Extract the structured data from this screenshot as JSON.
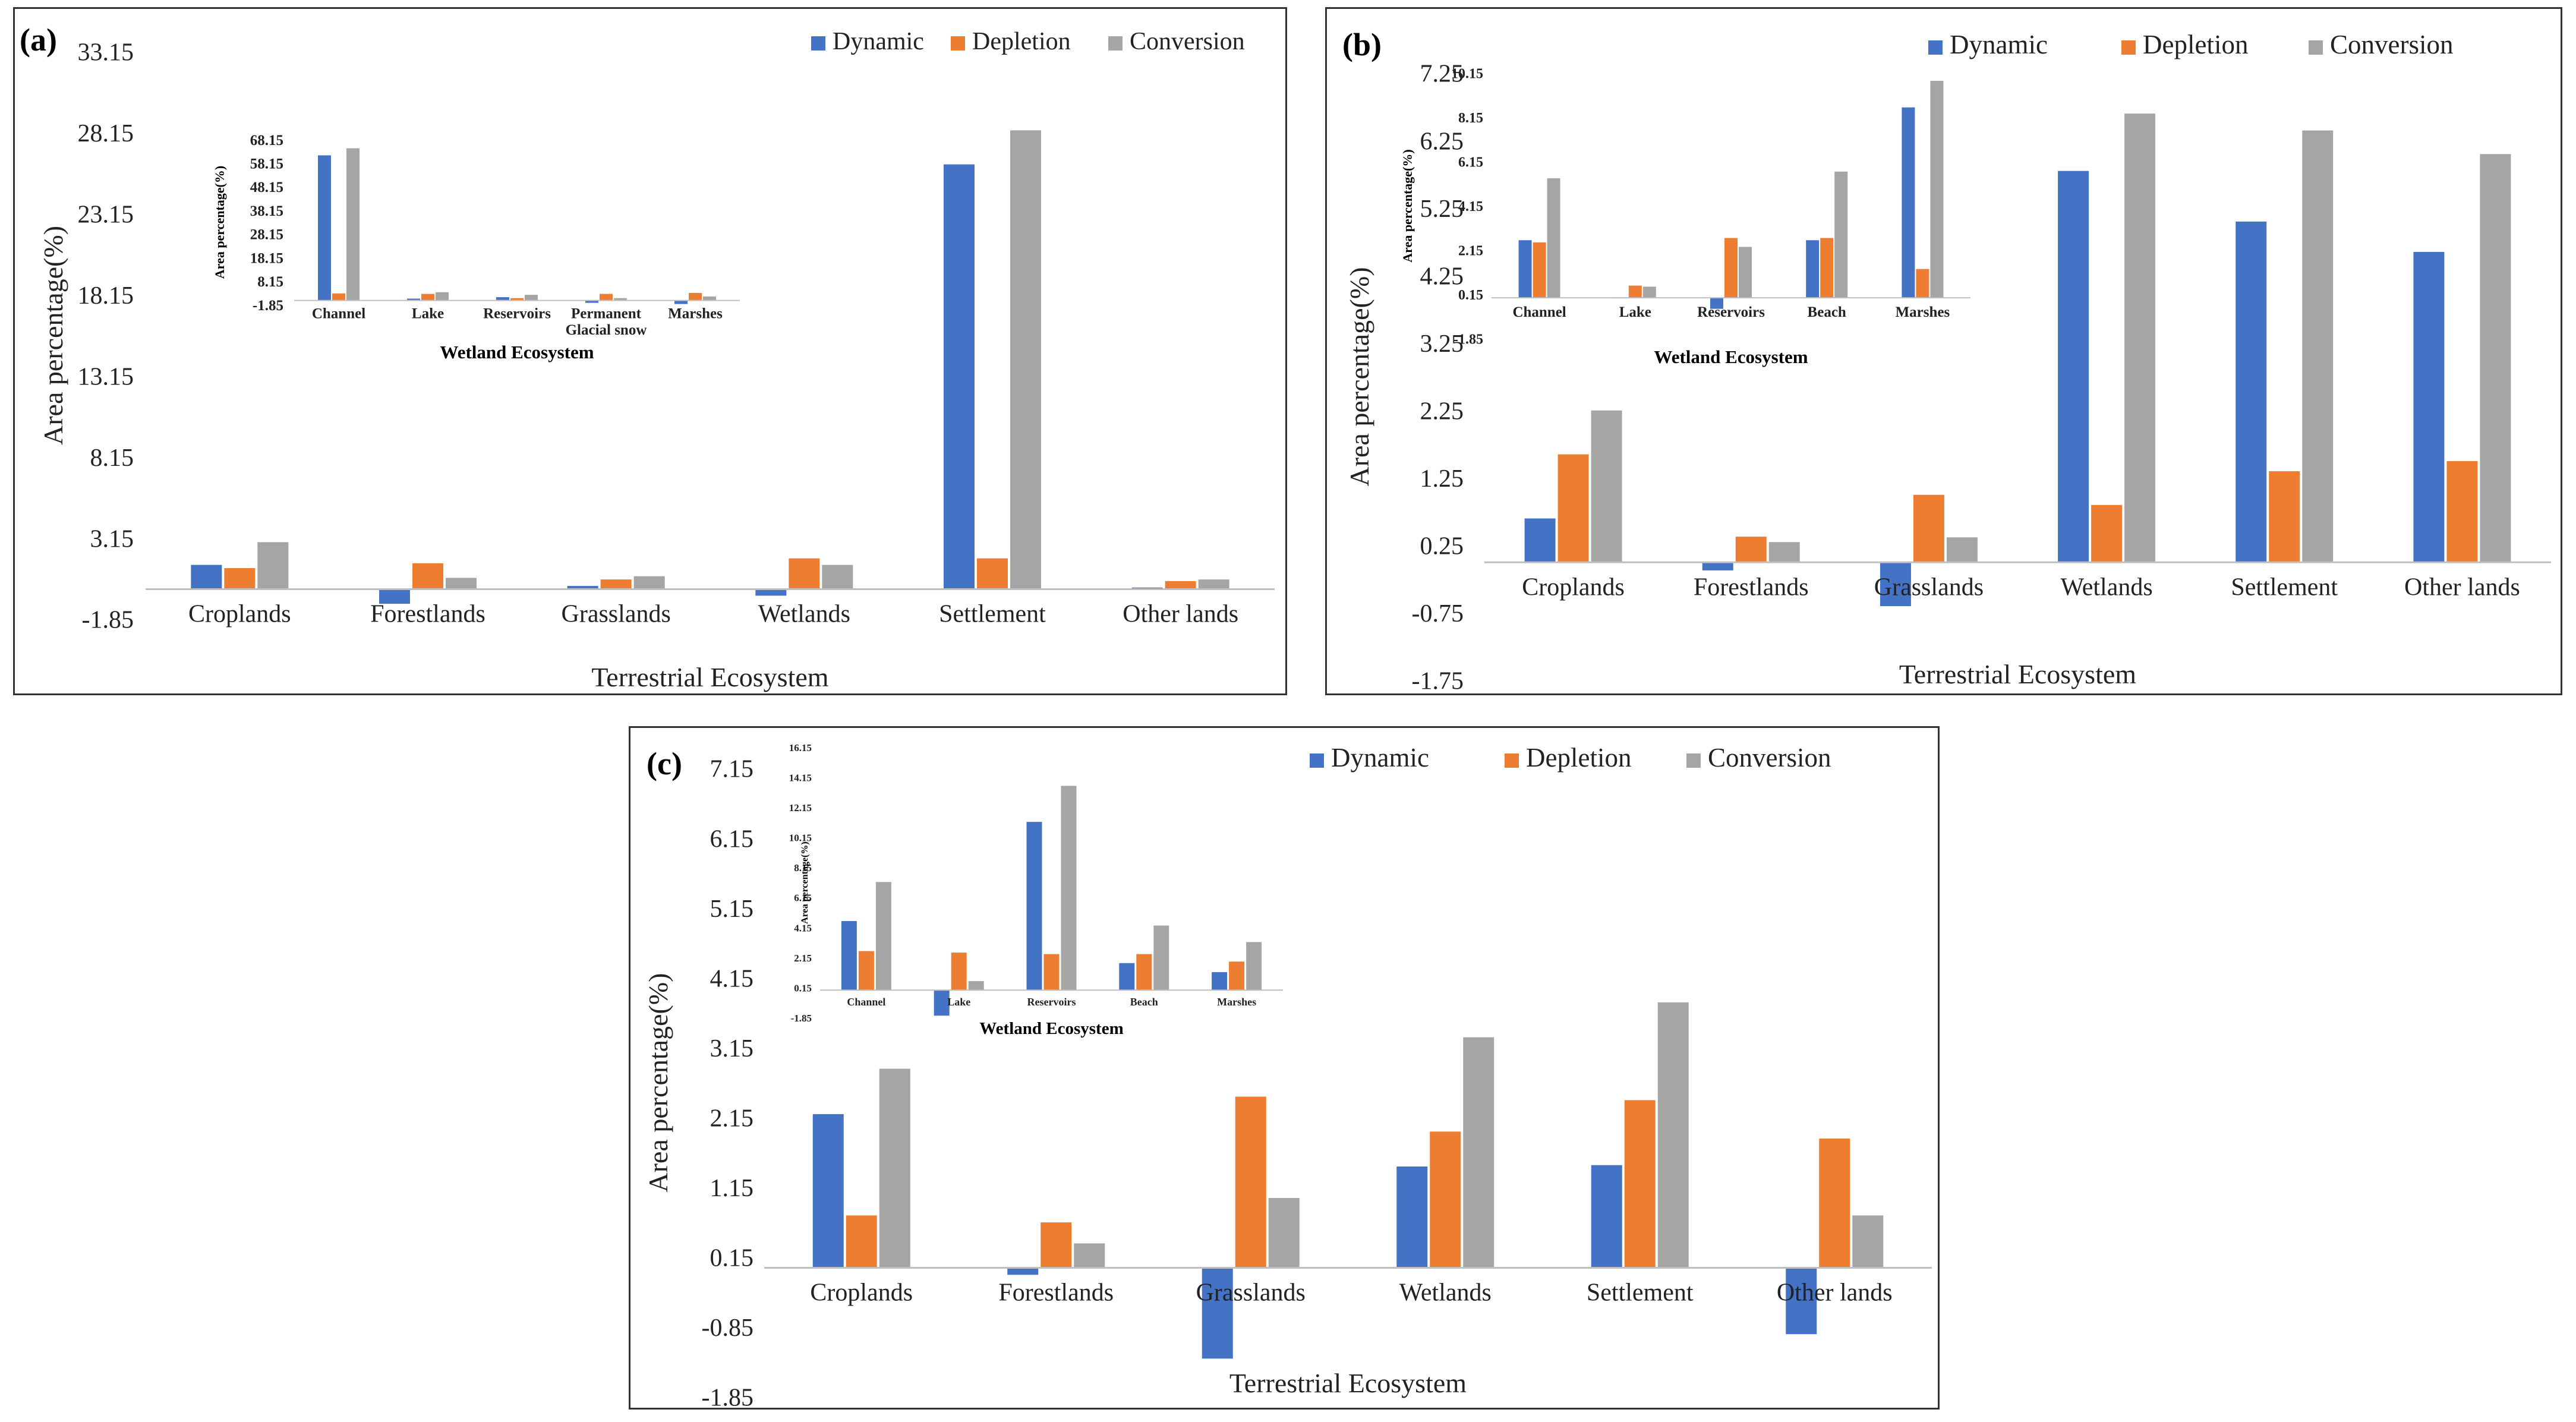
{
  "series_names": [
    "Dynamic",
    "Depletion",
    "Conversion"
  ],
  "colors": {
    "Dynamic": "#4472C4",
    "Depletion": "#ED7D31",
    "Conversion": "#A5A5A5"
  },
  "chart_data": [
    {
      "panel": "(a)",
      "type": "bar",
      "title": "",
      "xlabel": "Terrestrial  Ecosystem",
      "ylabel": "Area percentage(%)",
      "ylim": [
        -1.85,
        33.15
      ],
      "yticks": [
        "33.15",
        "28.15",
        "23.15",
        "18.15",
        "13.15",
        "8.15",
        "3.15",
        "-1.85"
      ],
      "yticks_num": [
        33.15,
        28.15,
        23.15,
        18.15,
        13.15,
        8.15,
        3.15,
        -1.85
      ],
      "categories": [
        "Croplands",
        "Forestlands",
        "Grasslands",
        "Wetlands",
        "Settlement",
        "Other lands"
      ],
      "series": [
        {
          "name": "Dynamic",
          "values": [
            1.5,
            -0.9,
            0.2,
            -0.4,
            26.2,
            0.1
          ]
        },
        {
          "name": "Depletion",
          "values": [
            1.3,
            1.6,
            0.6,
            1.9,
            1.9,
            0.5
          ]
        },
        {
          "name": "Conversion",
          "values": [
            2.9,
            0.7,
            0.8,
            1.5,
            28.3,
            0.6
          ]
        }
      ],
      "inset": {
        "xlabel": "Wetland Ecosystem",
        "ylabel": "Area percentage(%)",
        "ylim": [
          -1.85,
          68.15
        ],
        "yticks": [
          "68.15",
          "58.15",
          "48.15",
          "38.15",
          "28.15",
          "18.15",
          "8.15",
          "-1.85"
        ],
        "yticks_num": [
          68.15,
          58.15,
          48.15,
          38.15,
          28.15,
          18.15,
          8.15,
          -1.85
        ],
        "categories": [
          "Channel",
          "Lake",
          "Reservoirs",
          "Permanent Glacial snow",
          "Marshes"
        ],
        "category_lines": [
          [
            "Channel"
          ],
          [
            "Lake"
          ],
          [
            "Reservoirs"
          ],
          [
            "Permanent",
            "Glacial snow"
          ],
          [
            "Marshes"
          ]
        ],
        "series": [
          {
            "name": "Dynamic",
            "values": [
              61.5,
              0.8,
              1.4,
              -1.0,
              -1.5
            ]
          },
          {
            "name": "Depletion",
            "values": [
              3.0,
              2.8,
              1.0,
              2.8,
              3.2
            ]
          },
          {
            "name": "Conversion",
            "values": [
              64.5,
              3.5,
              2.4,
              1.0,
              1.7
            ]
          }
        ]
      }
    },
    {
      "panel": "(b)",
      "type": "bar",
      "title": "",
      "xlabel": "Terrestrial  Ecosystem",
      "ylabel": "Area percentage(%)",
      "ylim": [
        -1.75,
        7.25
      ],
      "yticks": [
        "7.25",
        "6.25",
        "5.25",
        "4.25",
        "3.25",
        "2.25",
        "1.25",
        "0.25",
        "-0.75",
        "-1.75"
      ],
      "yticks_num": [
        7.25,
        6.25,
        5.25,
        4.25,
        3.25,
        2.25,
        1.25,
        0.25,
        -0.75,
        -1.75
      ],
      "categories": [
        "Croplands",
        "Forestlands",
        "Grasslands",
        "Wetlands",
        "Settlement",
        "Other lands"
      ],
      "series": [
        {
          "name": "Dynamic",
          "values": [
            0.65,
            -0.12,
            -0.65,
            5.8,
            5.05,
            4.6
          ]
        },
        {
          "name": "Depletion",
          "values": [
            1.6,
            0.38,
            1.0,
            0.85,
            1.35,
            1.5
          ]
        },
        {
          "name": "Conversion",
          "values": [
            2.25,
            0.3,
            0.37,
            6.65,
            6.4,
            6.05
          ]
        }
      ],
      "inset": {
        "xlabel": "Wetland Ecosystem",
        "ylabel": "Area percentage(%)",
        "ylim": [
          -1.85,
          10.15
        ],
        "yticks": [
          "10.15",
          "8.15",
          "6.15",
          "4.15",
          "2.15",
          "0.15",
          "-1.85"
        ],
        "yticks_num": [
          10.15,
          8.15,
          6.15,
          4.15,
          2.15,
          0.15,
          -1.85
        ],
        "categories": [
          "Channel",
          "Lake",
          "Reservoirs",
          "Beach",
          "Marshes"
        ],
        "category_lines": [
          [
            "Channel"
          ],
          [
            "Lake"
          ],
          [
            "Reservoirs"
          ],
          [
            "Beach"
          ],
          [
            "Marshes"
          ]
        ],
        "series": [
          {
            "name": "Dynamic",
            "values": [
              2.6,
              0.0,
              -0.5,
              2.6,
              8.6
            ]
          },
          {
            "name": "Depletion",
            "values": [
              2.5,
              0.55,
              2.7,
              2.7,
              1.3
            ]
          },
          {
            "name": "Conversion",
            "values": [
              5.4,
              0.5,
              2.3,
              5.7,
              9.8
            ]
          }
        ]
      }
    },
    {
      "panel": "(c)",
      "type": "bar",
      "title": "",
      "xlabel": "Terrestrial  Ecosystem",
      "ylabel": "Area percentage(%)",
      "ylim": [
        -1.85,
        7.15
      ],
      "yticks": [
        "7.15",
        "6.15",
        "5.15",
        "4.15",
        "3.15",
        "2.15",
        "1.15",
        "0.15",
        "-0.85",
        "-1.85"
      ],
      "yticks_num": [
        7.15,
        6.15,
        5.15,
        4.15,
        3.15,
        2.15,
        1.15,
        0.15,
        -0.85,
        -1.85
      ],
      "categories": [
        "Croplands",
        "Forestlands",
        "Grasslands",
        "Wetlands",
        "Settlement",
        "Other lands"
      ],
      "series": [
        {
          "name": "Dynamic",
          "values": [
            2.2,
            -0.1,
            -1.3,
            1.45,
            1.47,
            -0.95
          ]
        },
        {
          "name": "Depletion",
          "values": [
            0.75,
            0.65,
            2.45,
            1.95,
            2.4,
            1.85
          ]
        },
        {
          "name": "Conversion",
          "values": [
            2.85,
            0.35,
            1.0,
            3.3,
            3.8,
            0.75
          ]
        }
      ],
      "inset": {
        "xlabel": "Wetland Ecosystem",
        "ylabel": "Area percentage(%)",
        "ylim": [
          -1.85,
          16.15
        ],
        "yticks": [
          "16.15",
          "14.15",
          "12.15",
          "10.15",
          "8.15",
          "6.15",
          "4.15",
          "2.15",
          "0.15",
          "-1.85"
        ],
        "yticks_num": [
          16.15,
          14.15,
          12.15,
          10.15,
          8.15,
          6.15,
          4.15,
          2.15,
          0.15,
          -1.85
        ],
        "categories": [
          "Channel",
          "Lake",
          "Reservoirs",
          "Beach",
          "Marshes"
        ],
        "category_lines": [
          [
            "Channel"
          ],
          [
            "Lake"
          ],
          [
            "Reservoirs"
          ],
          [
            "Beach"
          ],
          [
            "Marshes"
          ]
        ],
        "series": [
          {
            "name": "Dynamic",
            "values": [
              4.6,
              -1.7,
              11.2,
              1.8,
              1.2
            ]
          },
          {
            "name": "Depletion",
            "values": [
              2.6,
              2.5,
              2.4,
              2.4,
              1.9
            ]
          },
          {
            "name": "Conversion",
            "values": [
              7.2,
              0.6,
              13.6,
              4.3,
              3.2
            ]
          }
        ]
      }
    }
  ]
}
